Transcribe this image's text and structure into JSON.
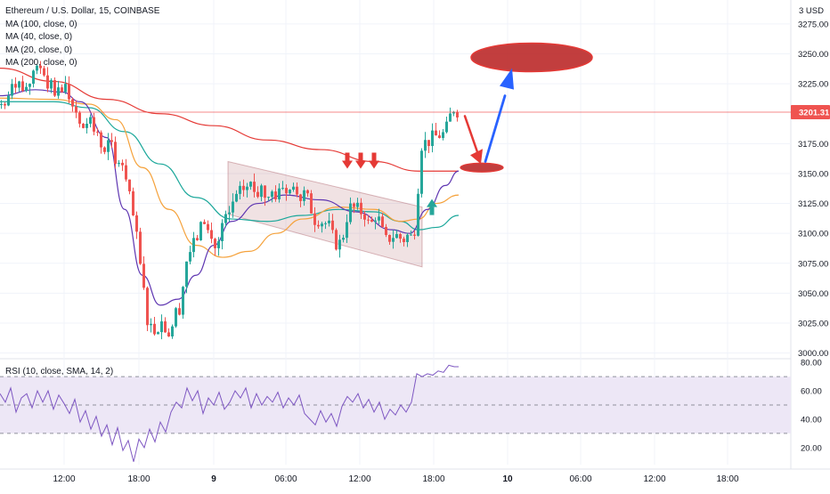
{
  "colors": {
    "up": "#26a69a",
    "down": "#ef5350",
    "ma100": "#e53935",
    "ma40": "#1aa79a",
    "ma20": "#f5a23c",
    "ma200": "#5e35b1",
    "rsi": "#7e57c2",
    "rsi_band": "#ede7f6",
    "channel": "#8b1f2a",
    "price_line": "#ef5350",
    "arrow_red": "#e53935",
    "arrow_blue": "#2962ff",
    "arrow_teal": "#26a69a",
    "grid": "#f0f3fa",
    "axis_text": "#131722"
  },
  "header": {
    "symbol": "Ethereum / U.S. Dollar, 15, COINBASE",
    "indicators": [
      "MA (100, close, 0)",
      "MA (40, close, 0)",
      "MA (20, close, 0)",
      "MA (200, close, 0)"
    ],
    "rsi_label": "RSI (10, close, SMA, 14, 2)",
    "currency": "3 USD"
  },
  "chart_data": {
    "type": "candlestick",
    "symbol": "ETH/USD",
    "timeframe": "15",
    "exchange": "COINBASE",
    "x_ticks": [
      "12:00",
      "18:00",
      "9",
      "06:00",
      "12:00",
      "18:00",
      "10",
      "06:00",
      "12:00",
      "18:00"
    ],
    "price_ticks": [
      "3275.00",
      "3250.00",
      "3225.00",
      "3175.00",
      "3150.00",
      "3125.00",
      "3100.00",
      "3075.00",
      "3050.00",
      "3025.00",
      "3000.00"
    ],
    "ylim": [
      2996,
      3295
    ],
    "current_price": "3201.31",
    "candle_anchors": [
      [
        0,
        3208
      ],
      [
        8,
        3215
      ],
      [
        14,
        3223
      ],
      [
        20,
        3227
      ],
      [
        26,
        3220
      ],
      [
        32,
        3225
      ],
      [
        38,
        3233
      ],
      [
        44,
        3238
      ],
      [
        48,
        3232
      ],
      [
        52,
        3221
      ],
      [
        56,
        3228
      ],
      [
        60,
        3215
      ],
      [
        64,
        3222
      ],
      [
        68,
        3218
      ],
      [
        72,
        3225
      ],
      [
        76,
        3212
      ],
      [
        80,
        3206
      ],
      [
        86,
        3200
      ],
      [
        92,
        3188
      ],
      [
        98,
        3195
      ],
      [
        104,
        3185
      ],
      [
        110,
        3178
      ],
      [
        116,
        3168
      ],
      [
        122,
        3178
      ],
      [
        128,
        3158
      ],
      [
        134,
        3168
      ],
      [
        140,
        3145
      ],
      [
        146,
        3122
      ],
      [
        150,
        3106
      ],
      [
        154,
        3085
      ],
      [
        158,
        3062
      ],
      [
        162,
        3040
      ],
      [
        166,
        3018
      ],
      [
        170,
        3026
      ],
      [
        174,
        3012
      ],
      [
        178,
        3034
      ],
      [
        182,
        3018
      ],
      [
        186,
        3025
      ],
      [
        190,
        3008
      ],
      [
        194,
        3040
      ],
      [
        198,
        3028
      ],
      [
        202,
        3048
      ],
      [
        206,
        3065
      ],
      [
        210,
        3090
      ],
      [
        214,
        3080
      ],
      [
        218,
        3102
      ],
      [
        222,
        3092
      ],
      [
        226,
        3118
      ],
      [
        230,
        3105
      ],
      [
        234,
        3098
      ],
      [
        238,
        3092
      ],
      [
        242,
        3085
      ],
      [
        246,
        3098
      ],
      [
        250,
        3115
      ],
      [
        254,
        3108
      ],
      [
        258,
        3122
      ],
      [
        262,
        3130
      ],
      [
        266,
        3128
      ],
      [
        270,
        3140
      ],
      [
        274,
        3135
      ],
      [
        278,
        3143
      ],
      [
        282,
        3138
      ],
      [
        286,
        3132
      ],
      [
        292,
        3140
      ],
      [
        298,
        3128
      ],
      [
        304,
        3135
      ],
      [
        310,
        3130
      ],
      [
        316,
        3138
      ],
      [
        322,
        3134
      ],
      [
        328,
        3139
      ],
      [
        334,
        3131
      ],
      [
        340,
        3136
      ],
      [
        346,
        3125
      ],
      [
        350,
        3115
      ],
      [
        354,
        3108
      ],
      [
        358,
        3115
      ],
      [
        362,
        3105
      ],
      [
        366,
        3112
      ],
      [
        370,
        3100
      ],
      [
        374,
        3095
      ],
      [
        378,
        3088
      ],
      [
        382,
        3096
      ],
      [
        386,
        3102
      ],
      [
        390,
        3125
      ],
      [
        394,
        3118
      ],
      [
        398,
        3124
      ],
      [
        402,
        3116
      ],
      [
        406,
        3120
      ],
      [
        410,
        3112
      ],
      [
        414,
        3105
      ],
      [
        418,
        3112
      ],
      [
        422,
        3118
      ],
      [
        426,
        3104
      ],
      [
        430,
        3098
      ],
      [
        434,
        3090
      ],
      [
        438,
        3102
      ],
      [
        442,
        3094
      ],
      [
        446,
        3102
      ],
      [
        450,
        3090
      ],
      [
        454,
        3100
      ],
      [
        458,
        3096
      ],
      [
        462,
        3098
      ],
      [
        466,
        3110
      ],
      [
        470,
        3168
      ],
      [
        474,
        3180
      ],
      [
        478,
        3172
      ],
      [
        482,
        3182
      ],
      [
        486,
        3178
      ],
      [
        490,
        3184
      ],
      [
        494,
        3180
      ],
      [
        498,
        3186
      ],
      [
        502,
        3190
      ],
      [
        506,
        3206
      ],
      [
        510,
        3203
      ],
      [
        514,
        3201.31
      ]
    ],
    "ma100": [
      [
        0,
        3238
      ],
      [
        60,
        3227
      ],
      [
        120,
        3212
      ],
      [
        180,
        3200
      ],
      [
        240,
        3190
      ],
      [
        300,
        3178
      ],
      [
        360,
        3170
      ],
      [
        420,
        3160
      ],
      [
        470,
        3152
      ],
      [
        515,
        3152
      ]
    ],
    "ma40": [
      [
        0,
        3210
      ],
      [
        60,
        3210
      ],
      [
        100,
        3205
      ],
      [
        140,
        3185
      ],
      [
        180,
        3158
      ],
      [
        220,
        3130
      ],
      [
        260,
        3112
      ],
      [
        300,
        3110
      ],
      [
        340,
        3115
      ],
      [
        380,
        3120
      ],
      [
        420,
        3118
      ],
      [
        450,
        3110
      ],
      [
        470,
        3103
      ],
      [
        490,
        3105
      ],
      [
        515,
        3115
      ]
    ],
    "ma20": [
      [
        0,
        3213
      ],
      [
        60,
        3212
      ],
      [
        100,
        3208
      ],
      [
        130,
        3195
      ],
      [
        160,
        3155
      ],
      [
        190,
        3120
      ],
      [
        220,
        3090
      ],
      [
        250,
        3080
      ],
      [
        280,
        3085
      ],
      [
        310,
        3100
      ],
      [
        340,
        3112
      ],
      [
        380,
        3122
      ],
      [
        420,
        3120
      ],
      [
        450,
        3110
      ],
      [
        470,
        3112
      ],
      [
        490,
        3125
      ],
      [
        515,
        3132
      ]
    ],
    "ma200": [
      [
        0,
        3215
      ],
      [
        40,
        3220
      ],
      [
        70,
        3218
      ],
      [
        90,
        3210
      ],
      [
        120,
        3180
      ],
      [
        140,
        3120
      ],
      [
        160,
        3065
      ],
      [
        180,
        3040
      ],
      [
        200,
        3045
      ],
      [
        220,
        3065
      ],
      [
        240,
        3090
      ],
      [
        260,
        3110
      ],
      [
        290,
        3125
      ],
      [
        320,
        3132
      ],
      [
        360,
        3128
      ],
      [
        400,
        3118
      ],
      [
        440,
        3103
      ],
      [
        460,
        3100
      ],
      [
        480,
        3120
      ],
      [
        500,
        3140
      ],
      [
        515,
        3152
      ]
    ],
    "channel": {
      "points": [
        [
          256,
          3160
        ],
        [
          256,
          3116
        ],
        [
          474,
          3072
        ],
        [
          474,
          3122
        ]
      ]
    },
    "annotations": {
      "target_ellipse": {
        "price": 3247,
        "x": 597
      },
      "pullback_ellipse": {
        "price": 3155,
        "x": 541
      },
      "sell_arrows_x": [
        390,
        405,
        420
      ],
      "sell_arrow_price": 3160,
      "buy_arrow": {
        "x": 485,
        "price": 3122
      }
    },
    "rsi": {
      "ticks": [
        "80.00",
        "60.00",
        "40.00",
        "20.00"
      ],
      "ylim": [
        8,
        82
      ],
      "bands": [
        30,
        50,
        70
      ],
      "anchors": [
        [
          0,
          58
        ],
        [
          6,
          52
        ],
        [
          12,
          62
        ],
        [
          18,
          45
        ],
        [
          24,
          55
        ],
        [
          30,
          58
        ],
        [
          36,
          48
        ],
        [
          42,
          60
        ],
        [
          48,
          52
        ],
        [
          54,
          60
        ],
        [
          60,
          47
        ],
        [
          66,
          57
        ],
        [
          72,
          51
        ],
        [
          78,
          44
        ],
        [
          84,
          54
        ],
        [
          90,
          38
        ],
        [
          96,
          46
        ],
        [
          102,
          33
        ],
        [
          108,
          42
        ],
        [
          114,
          28
        ],
        [
          120,
          36
        ],
        [
          126,
          22
        ],
        [
          132,
          34
        ],
        [
          138,
          18
        ],
        [
          144,
          25
        ],
        [
          150,
          10
        ],
        [
          156,
          26
        ],
        [
          162,
          20
        ],
        [
          168,
          33
        ],
        [
          174,
          24
        ],
        [
          180,
          38
        ],
        [
          186,
          31
        ],
        [
          192,
          45
        ],
        [
          198,
          52
        ],
        [
          204,
          48
        ],
        [
          210,
          62
        ],
        [
          216,
          53
        ],
        [
          222,
          60
        ],
        [
          228,
          44
        ],
        [
          234,
          55
        ],
        [
          240,
          50
        ],
        [
          246,
          59
        ],
        [
          252,
          47
        ],
        [
          258,
          52
        ],
        [
          264,
          60
        ],
        [
          270,
          55
        ],
        [
          276,
          62
        ],
        [
          282,
          48
        ],
        [
          288,
          58
        ],
        [
          294,
          50
        ],
        [
          300,
          56
        ],
        [
          306,
          52
        ],
        [
          312,
          59
        ],
        [
          318,
          48
        ],
        [
          324,
          55
        ],
        [
          330,
          50
        ],
        [
          336,
          57
        ],
        [
          342,
          44
        ],
        [
          348,
          40
        ],
        [
          354,
          36
        ],
        [
          360,
          46
        ],
        [
          366,
          38
        ],
        [
          372,
          44
        ],
        [
          378,
          35
        ],
        [
          384,
          49
        ],
        [
          390,
          56
        ],
        [
          396,
          52
        ],
        [
          402,
          58
        ],
        [
          408,
          48
        ],
        [
          414,
          54
        ],
        [
          420,
          45
        ],
        [
          426,
          52
        ],
        [
          432,
          40
        ],
        [
          438,
          47
        ],
        [
          444,
          43
        ],
        [
          450,
          50
        ],
        [
          456,
          45
        ],
        [
          462,
          52
        ],
        [
          468,
          72
        ],
        [
          474,
          70
        ],
        [
          480,
          72
        ],
        [
          486,
          71
        ],
        [
          492,
          74
        ],
        [
          498,
          73
        ],
        [
          504,
          78
        ],
        [
          510,
          77
        ],
        [
          515,
          77
        ]
      ]
    }
  }
}
